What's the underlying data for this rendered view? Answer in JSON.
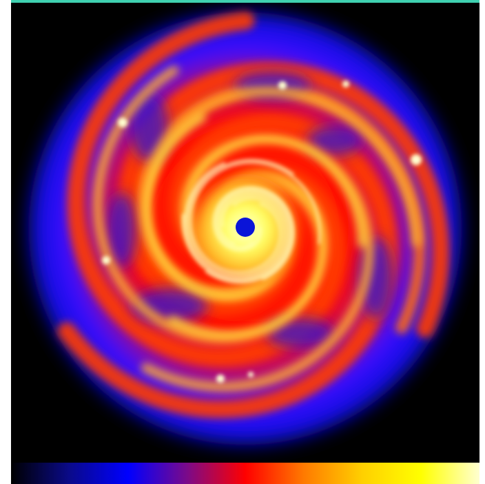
{
  "figure": {
    "description_colors": {
      "background": "#000000",
      "accent_bar": "#3fd0b0",
      "colormap": [
        "#000000",
        "#0a0a8a",
        "#0000ff",
        "#7a0a8a",
        "#ff0000",
        "#ff7a00",
        "#ffd000",
        "#ffff00",
        "#ffffd0"
      ]
    }
  }
}
